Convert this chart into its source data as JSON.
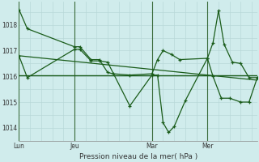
{
  "background_color": "#d0ecec",
  "grid_color": "#b8d8d8",
  "line_color": "#1a5c1a",
  "vline_color": "#3a6b3a",
  "title": "Pression niveau de la mer( hPa )",
  "ylabel_values": [
    1014,
    1015,
    1016,
    1017,
    1018
  ],
  "x_tick_labels": [
    "Lun",
    "Jeu",
    "Mar",
    "Mer"
  ],
  "x_tick_positions": [
    0,
    10,
    24,
    34
  ],
  "series1_x": [
    0,
    1.5,
    10,
    11,
    13,
    14.5,
    16,
    17,
    20,
    24,
    25,
    26,
    27.5,
    29,
    34,
    35,
    36,
    37,
    38.5,
    40,
    41.5,
    43
  ],
  "series1_y": [
    1018.6,
    1017.85,
    1017.15,
    1017.15,
    1016.65,
    1016.65,
    1016.15,
    1016.1,
    1016.05,
    1016.1,
    1016.65,
    1017.0,
    1016.85,
    1016.65,
    1016.7,
    1017.3,
    1018.55,
    1017.25,
    1016.55,
    1016.5,
    1015.95,
    1015.95
  ],
  "series2_x": [
    0,
    1.5,
    10,
    11,
    13,
    14.5,
    16,
    20,
    24,
    25,
    26,
    27,
    28,
    30,
    34,
    35,
    36.5,
    38,
    40,
    41.5,
    43
  ],
  "series2_y": [
    1016.8,
    1015.95,
    1017.05,
    1017.05,
    1016.6,
    1016.6,
    1016.55,
    1014.85,
    1016.05,
    1016.05,
    1014.2,
    1013.82,
    1014.05,
    1015.05,
    1016.7,
    1016.0,
    1015.15,
    1015.15,
    1015.0,
    1015.0,
    1015.95
  ],
  "trend_x": [
    0,
    43
  ],
  "trend_y": [
    1016.8,
    1015.85
  ],
  "hline_y": 1016.05,
  "vline_x_positions": [
    0,
    10,
    24,
    34
  ],
  "xlim": [
    0,
    43
  ],
  "ylim": [
    1013.5,
    1018.9
  ]
}
